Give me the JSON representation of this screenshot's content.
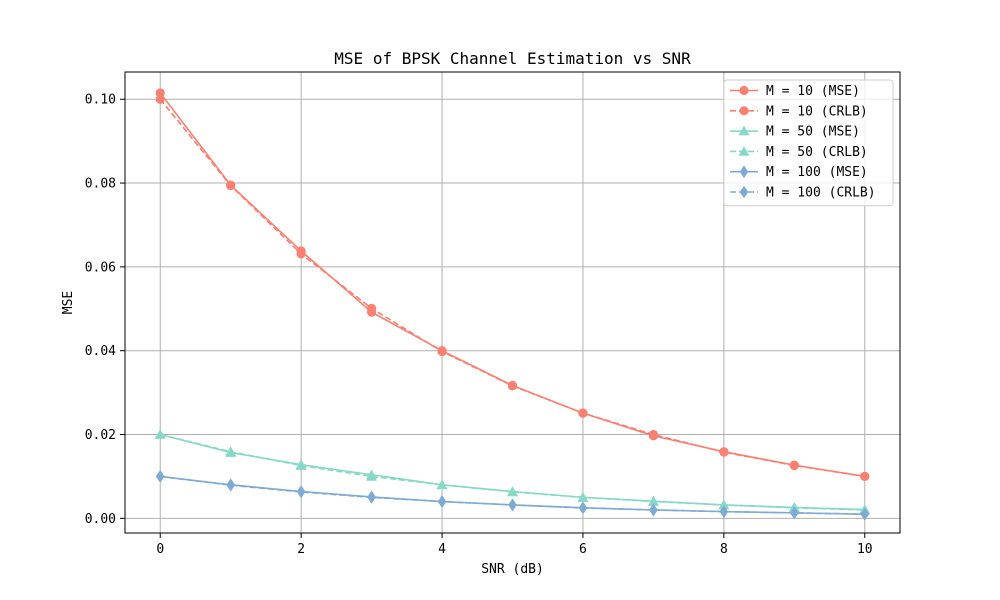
{
  "chart_data": {
    "type": "line",
    "title": "MSE of BPSK Channel Estimation vs SNR",
    "xlabel": "SNR (dB)",
    "ylabel": "MSE",
    "xlim": [
      -0.5,
      10.5
    ],
    "ylim": [
      -0.0035,
      0.1065
    ],
    "xticks": [
      0,
      2,
      4,
      6,
      8,
      10
    ],
    "xtick_labels": [
      "0",
      "2",
      "4",
      "6",
      "8",
      "10"
    ],
    "yticks": [
      0,
      0.02,
      0.04,
      0.06,
      0.08,
      0.1
    ],
    "ytick_labels": [
      "0.00",
      "0.02",
      "0.04",
      "0.06",
      "0.08",
      "0.10"
    ],
    "grid": true,
    "legend_position": "top-right",
    "x": [
      0,
      1,
      2,
      3,
      4,
      5,
      6,
      7,
      8,
      9,
      10
    ],
    "series": [
      {
        "name": "M = 10 (MSE)",
        "color": "#fa8072",
        "marker": "circle",
        "dash": "solid",
        "values": [
          0.1015,
          0.0795,
          0.0638,
          0.0492,
          0.04,
          0.0317,
          0.0251,
          0.0197,
          0.0159,
          0.0127,
          0.01
        ]
      },
      {
        "name": "M = 10 (CRLB)",
        "color": "#fa8072",
        "marker": "circle",
        "dash": "dashed",
        "values": [
          0.1,
          0.0794,
          0.0631,
          0.0501,
          0.0398,
          0.0316,
          0.0251,
          0.02,
          0.0158,
          0.0126,
          0.01
        ]
      },
      {
        "name": "M = 50 (MSE)",
        "color": "#88d8c8",
        "marker": "triangle",
        "dash": "solid",
        "values": [
          0.02,
          0.0157,
          0.0128,
          0.0104,
          0.008,
          0.0064,
          0.005,
          0.0041,
          0.0032,
          0.0026,
          0.0021
        ]
      },
      {
        "name": "M = 50 (CRLB)",
        "color": "#88d8c8",
        "marker": "triangle",
        "dash": "dashed",
        "values": [
          0.02,
          0.0159,
          0.0126,
          0.01,
          0.008,
          0.0063,
          0.005,
          0.004,
          0.0032,
          0.0025,
          0.002
        ]
      },
      {
        "name": "M = 100 (MSE)",
        "color": "#7faad4",
        "marker": "diamond",
        "dash": "solid",
        "values": [
          0.01,
          0.008,
          0.0064,
          0.0051,
          0.004,
          0.0032,
          0.0025,
          0.002,
          0.0016,
          0.0013,
          0.001
        ]
      },
      {
        "name": "M = 100 (CRLB)",
        "color": "#7faad4",
        "marker": "diamond",
        "dash": "dashed",
        "values": [
          0.01,
          0.0079,
          0.0063,
          0.005,
          0.004,
          0.0032,
          0.0025,
          0.002,
          0.0016,
          0.0013,
          0.001
        ]
      }
    ]
  }
}
